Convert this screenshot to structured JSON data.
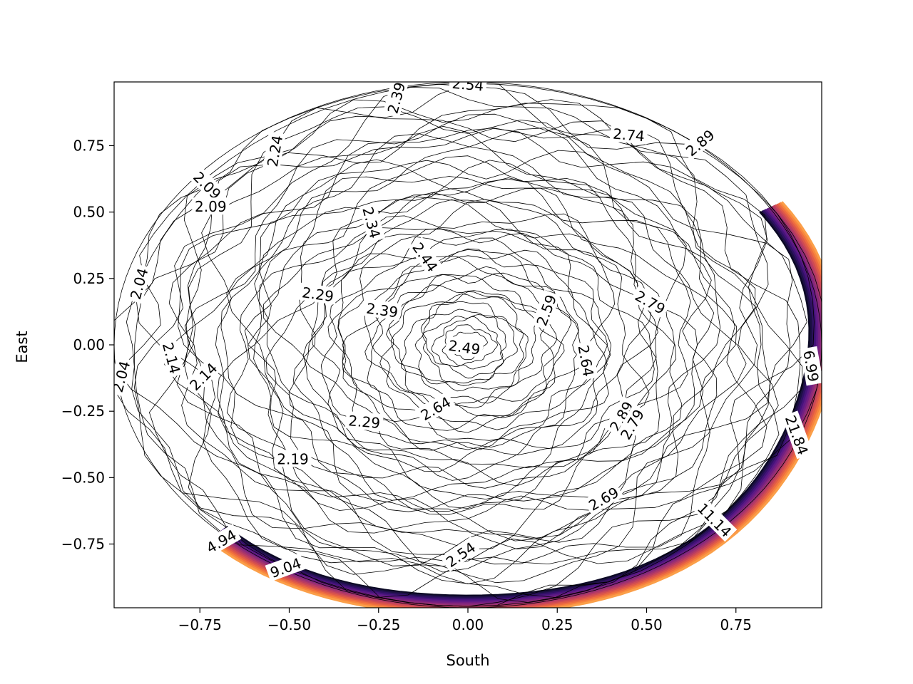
{
  "chart_data": {
    "type": "contour",
    "xlabel": "South",
    "ylabel": "East",
    "xlim": [
      -0.99,
      0.99
    ],
    "ylim": [
      -0.99,
      0.99
    ],
    "x_ticks": [
      -0.75,
      -0.5,
      -0.25,
      0.0,
      0.25,
      0.5,
      0.75
    ],
    "x_tick_labels": [
      "−0.75",
      "−0.50",
      "−0.25",
      "0.00",
      "0.25",
      "0.50",
      "0.75"
    ],
    "y_ticks": [
      0.75,
      0.5,
      0.25,
      0.0,
      -0.25,
      -0.5,
      -0.75
    ],
    "y_tick_labels": [
      "0.75",
      "0.50",
      "0.25",
      "0.00",
      "−0.25",
      "−0.50",
      "−0.75"
    ],
    "domain": "unit-disk",
    "colormap": "magma",
    "colormap_note": "low levels drawn near black; high levels along lower-right rim shade through purple, red, orange",
    "grid": false,
    "legend": "none",
    "contour_labels": [
      {
        "text": "2.39",
        "x": -0.2,
        "y": 0.93,
        "rotation": 75
      },
      {
        "text": "2.54",
        "x": 0.0,
        "y": 0.98,
        "rotation": -5
      },
      {
        "text": "2.74",
        "x": 0.45,
        "y": 0.79,
        "rotation": -5
      },
      {
        "text": "2.89",
        "x": 0.65,
        "y": 0.76,
        "rotation": 40
      },
      {
        "text": "2.24",
        "x": -0.54,
        "y": 0.73,
        "rotation": 80
      },
      {
        "text": "2.09",
        "x": -0.73,
        "y": 0.6,
        "rotation": -45
      },
      {
        "text": "2.09",
        "x": -0.72,
        "y": 0.52,
        "rotation": 0
      },
      {
        "text": "2.34",
        "x": -0.27,
        "y": 0.46,
        "rotation": -75
      },
      {
        "text": "2.44",
        "x": -0.12,
        "y": 0.33,
        "rotation": -55
      },
      {
        "text": "2.04",
        "x": -0.92,
        "y": 0.23,
        "rotation": 75
      },
      {
        "text": "2.29",
        "x": -0.42,
        "y": 0.19,
        "rotation": -8
      },
      {
        "text": "2.59",
        "x": 0.22,
        "y": 0.13,
        "rotation": 70
      },
      {
        "text": "2.79",
        "x": 0.51,
        "y": 0.16,
        "rotation": -30
      },
      {
        "text": "2.39",
        "x": -0.24,
        "y": 0.13,
        "rotation": -8
      },
      {
        "text": "2.49",
        "x": -0.01,
        "y": -0.01,
        "rotation": -8
      },
      {
        "text": "2.64",
        "x": 0.33,
        "y": -0.06,
        "rotation": -80
      },
      {
        "text": "6.99",
        "x": 0.96,
        "y": -0.08,
        "rotation": -80
      },
      {
        "text": "2.04",
        "x": -0.97,
        "y": -0.12,
        "rotation": 75
      },
      {
        "text": "2.14",
        "x": -0.83,
        "y": -0.05,
        "rotation": -75
      },
      {
        "text": "2.14",
        "x": -0.74,
        "y": -0.12,
        "rotation": 45
      },
      {
        "text": "2.64",
        "x": -0.09,
        "y": -0.24,
        "rotation": 30
      },
      {
        "text": "2.89",
        "x": 0.43,
        "y": -0.27,
        "rotation": 60
      },
      {
        "text": "2.79",
        "x": 0.46,
        "y": -0.3,
        "rotation": 60
      },
      {
        "text": "2.29",
        "x": -0.29,
        "y": -0.29,
        "rotation": -5
      },
      {
        "text": "21.84",
        "x": 0.92,
        "y": -0.34,
        "rotation": -70
      },
      {
        "text": "2.19",
        "x": -0.49,
        "y": -0.43,
        "rotation": 0
      },
      {
        "text": "2.69",
        "x": 0.38,
        "y": -0.58,
        "rotation": 30
      },
      {
        "text": "11.14",
        "x": 0.69,
        "y": -0.66,
        "rotation": -45
      },
      {
        "text": "4.94",
        "x": -0.69,
        "y": -0.74,
        "rotation": 30
      },
      {
        "text": "2.54",
        "x": -0.02,
        "y": -0.79,
        "rotation": 35
      },
      {
        "text": "9.04",
        "x": -0.51,
        "y": -0.84,
        "rotation": 20
      }
    ]
  }
}
